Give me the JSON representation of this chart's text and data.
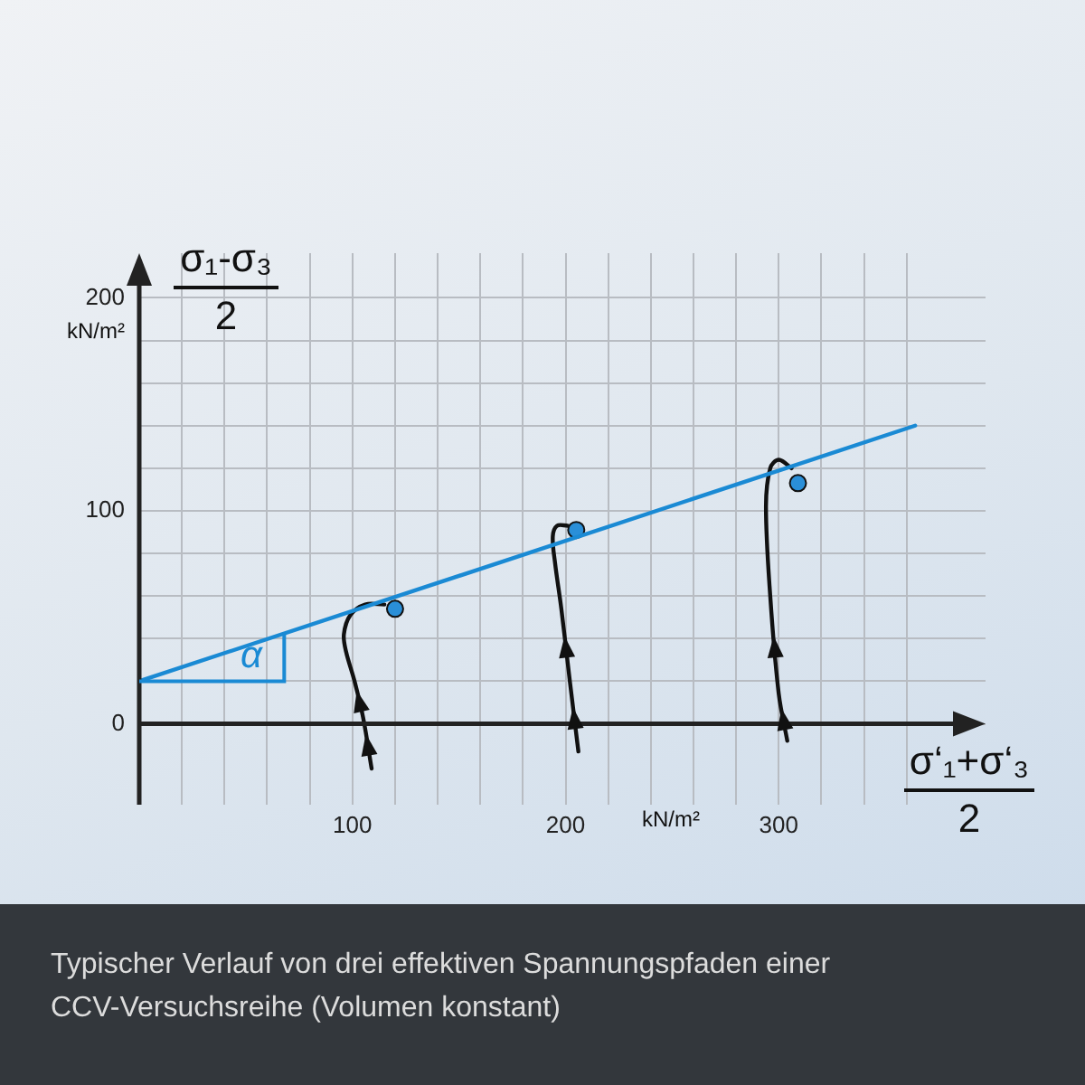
{
  "chart_data": {
    "type": "line",
    "xlabel": "σ‘₁+σ‘₃",
    "ylabel": "σ₁-σ₃",
    "xlim": [
      0,
      397
    ],
    "ylim": [
      -38,
      221
    ],
    "xticks": [
      {
        "value": 20,
        "label": null
      },
      {
        "value": 40,
        "label": null
      },
      {
        "value": 60,
        "label": null
      },
      {
        "value": 80,
        "label": null
      },
      100,
      {
        "value": 120,
        "label": null
      },
      {
        "value": 140,
        "label": null
      },
      {
        "value": 160,
        "label": null
      },
      {
        "value": 180,
        "label": null
      },
      200,
      {
        "value": 220,
        "label": null
      },
      {
        "value": 240,
        "label": null
      },
      {
        "value": 260,
        "label": null
      },
      {
        "value": 280,
        "label": null
      },
      300,
      {
        "value": 320,
        "label": null
      },
      {
        "value": 340,
        "label": null
      },
      {
        "value": 360,
        "label": null
      }
    ],
    "yticks": [
      0,
      {
        "value": 20,
        "label": null
      },
      {
        "value": 40,
        "label": null
      },
      {
        "value": 60,
        "label": null
      },
      {
        "value": 80,
        "label": null
      },
      100,
      {
        "value": 120,
        "label": null
      },
      {
        "value": 140,
        "label": null
      },
      {
        "value": 160,
        "label": null
      },
      {
        "value": 180,
        "label": null
      },
      200
    ],
    "grid": true,
    "legend": false,
    "series": [
      {
        "type": "line",
        "color": "#1a8ad4",
        "marker": "none",
        "x": [
          0,
          364
        ],
        "values": [
          20,
          140
        ]
      },
      {
        "type": "line",
        "color": "#111111",
        "marker": "none",
        "x": [
          109,
          105,
          101,
          97,
          96,
          99,
          106,
          115
        ],
        "values": [
          -21,
          3,
          20,
          34,
          42,
          51,
          56,
          56
        ]
      },
      {
        "type": "line",
        "color": "#111111",
        "marker": "none",
        "x": [
          206,
          202,
          198,
          195,
          194,
          196,
          201
        ],
        "values": [
          -13,
          20,
          54,
          76,
          88,
          93,
          93
        ]
      },
      {
        "type": "line",
        "color": "#111111",
        "marker": "none",
        "x": [
          304,
          300,
          296,
          294,
          296,
          300,
          306
        ],
        "values": [
          -8,
          14,
          60,
          102,
          120,
          124,
          120
        ]
      },
      {
        "type": "scatter",
        "color": "#2a8fd8",
        "marker": "circle",
        "x": [
          120,
          205,
          309
        ],
        "values": [
          54,
          91,
          113
        ]
      }
    ],
    "annotations": [
      "kN/m²",
      "kN/m²",
      {
        "text": "α",
        "x": 0,
        "y": 20
      },
      "2",
      "2",
      "Typischer Verlauf von drei effektiven Spannungspfaden einer CCV-Versuchsreihe (Volumen konstant)"
    ]
  }
}
